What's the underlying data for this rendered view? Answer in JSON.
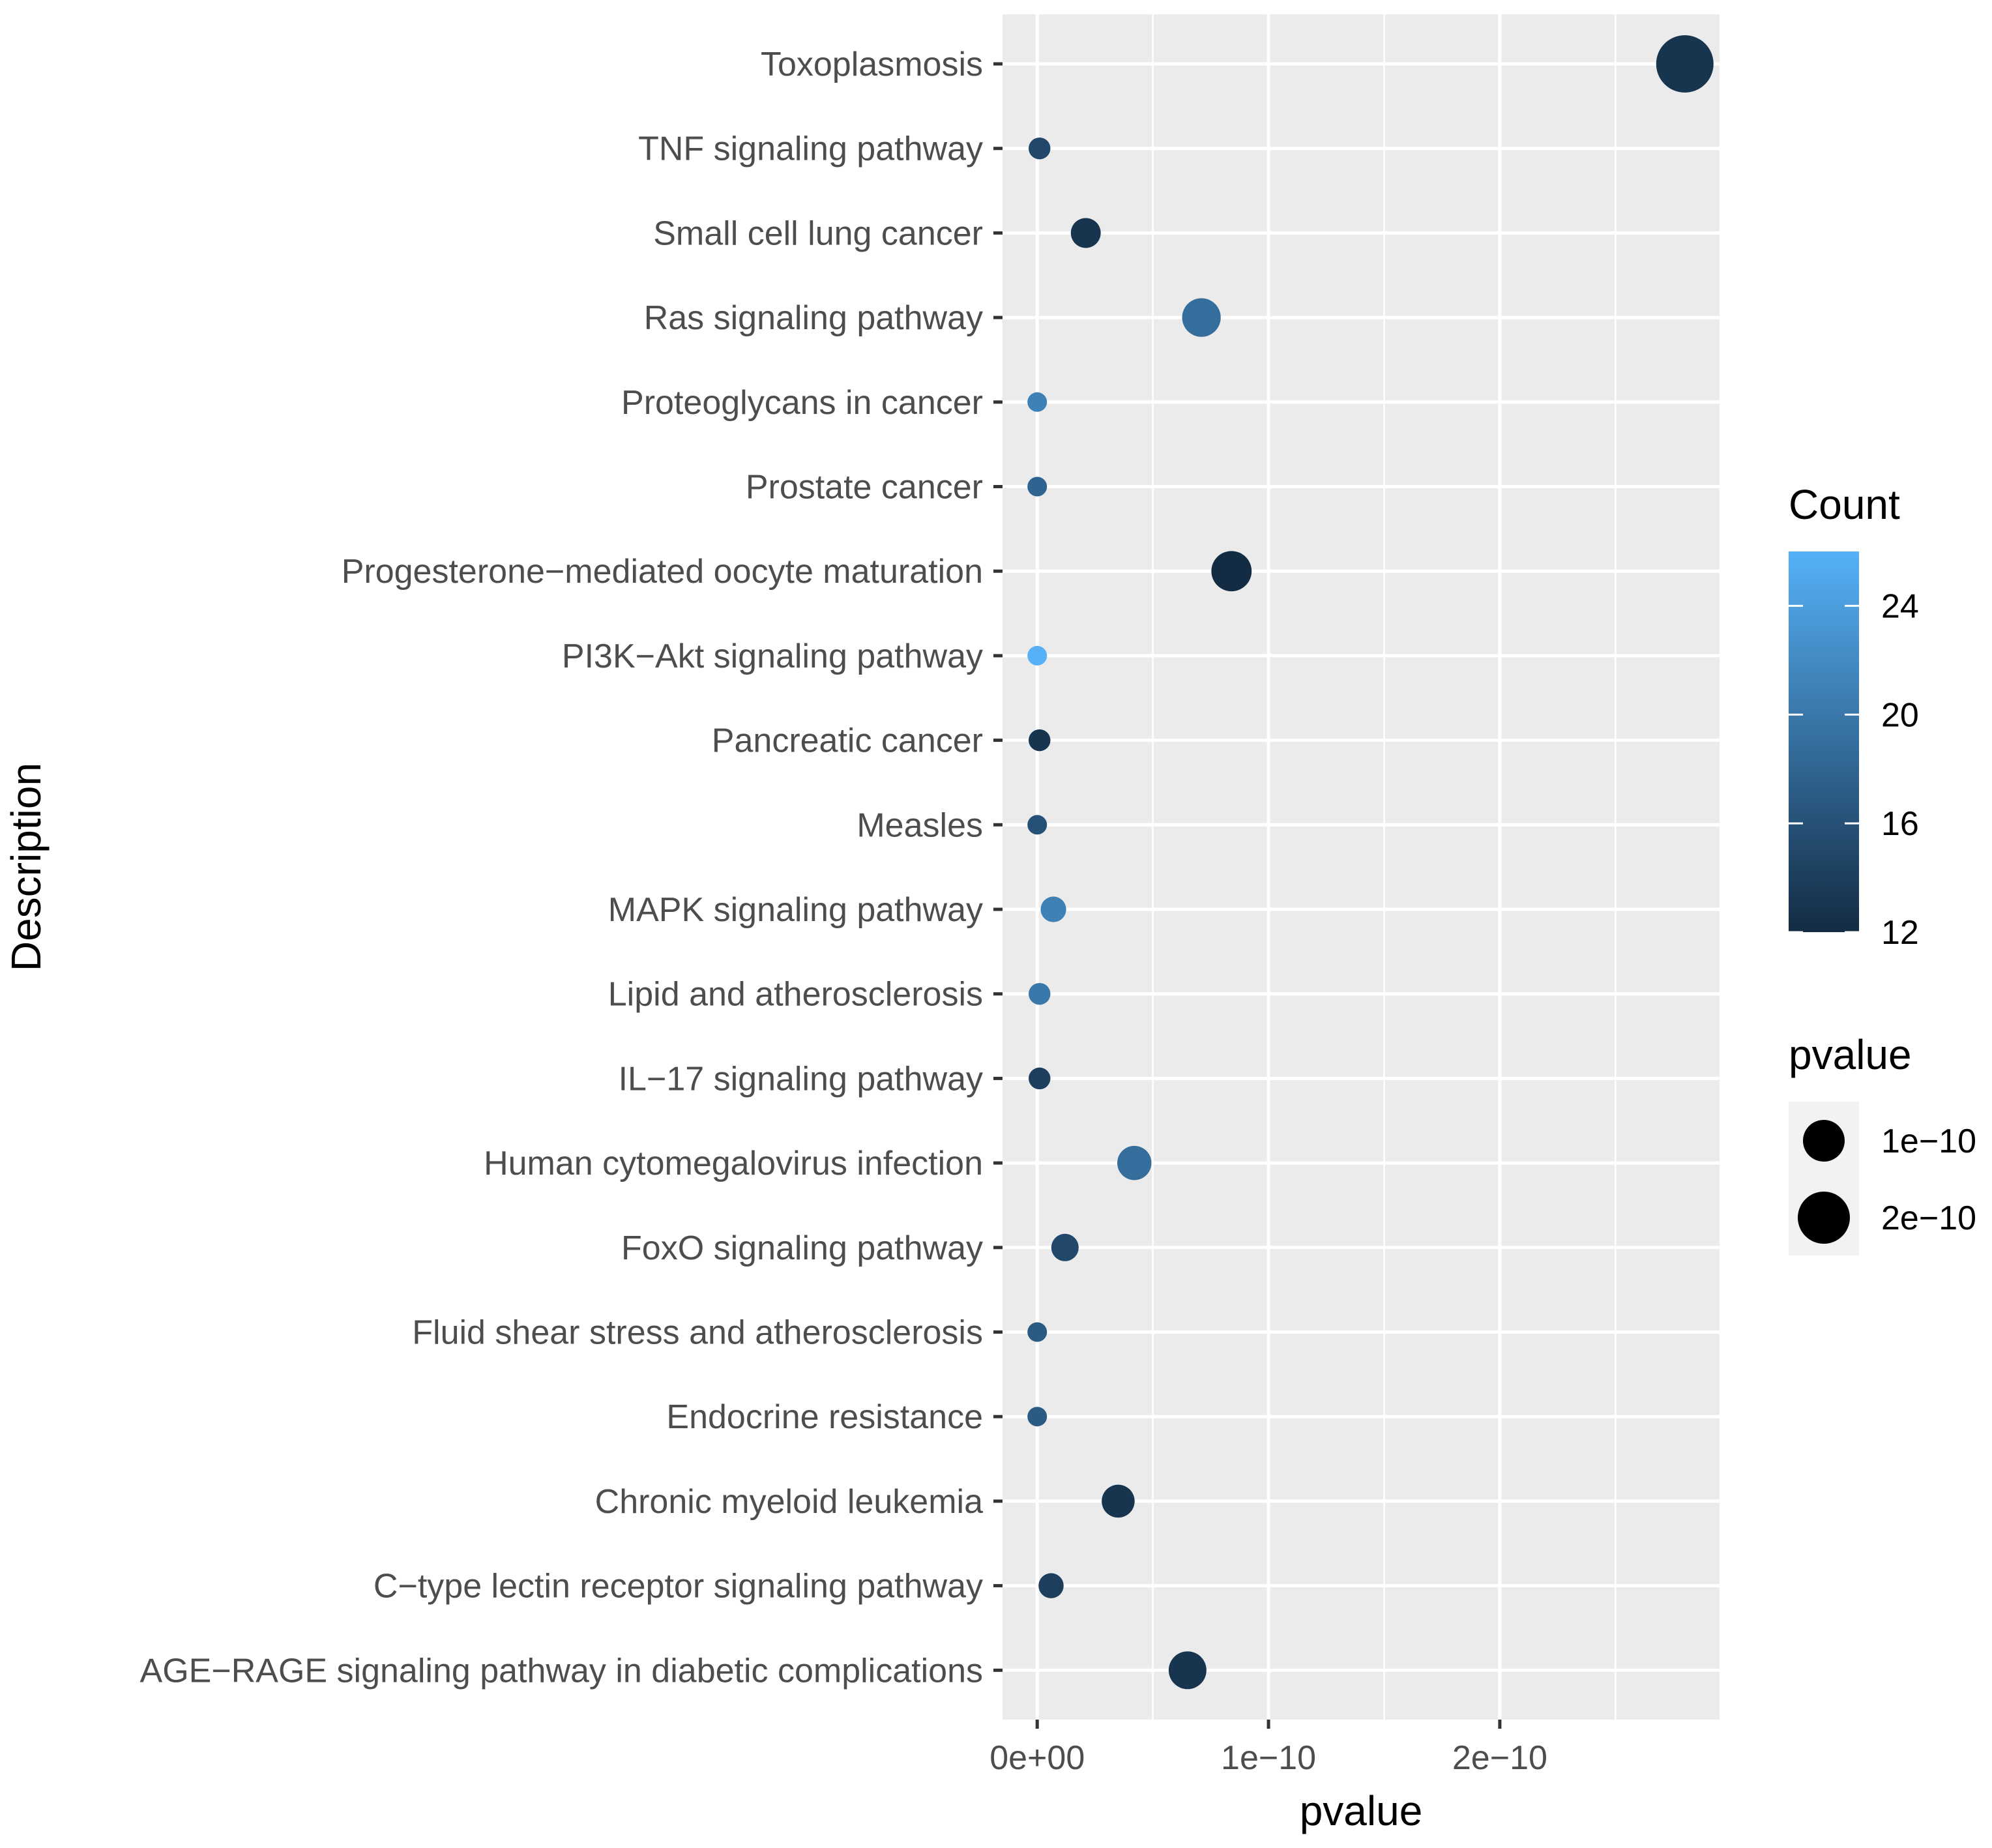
{
  "chart_data": {
    "type": "scatter",
    "title": "",
    "xlabel": "pvalue",
    "ylabel": "Description",
    "xlim": [
      -1.5e-11,
      2.95e-10
    ],
    "x_ticks": [
      0,
      1e-10,
      2e-10
    ],
    "x_tick_labels": [
      "0e+00",
      "1e−10",
      "2e−10"
    ],
    "grid": true,
    "categories": [
      "Toxoplasmosis",
      "TNF signaling pathway",
      "Small cell lung cancer",
      "Ras signaling pathway",
      "Proteoglycans in cancer",
      "Prostate cancer",
      "Progesterone−mediated oocyte maturation",
      "PI3K−Akt signaling pathway",
      "Pancreatic cancer",
      "Measles",
      "MAPK signaling pathway",
      "Lipid and atherosclerosis",
      "IL−17 signaling pathway",
      "Human cytomegalovirus infection",
      "FoxO signaling pathway",
      "Fluid shear stress and atherosclerosis",
      "Endocrine resistance",
      "Chronic myeloid leukemia",
      "C−type lectin receptor signaling pathway",
      "AGE−RAGE signaling pathway in diabetic complications"
    ],
    "x": [
      2.8e-10,
      1e-12,
      2.1e-11,
      7.1e-11,
      0.0,
      0.0,
      8.4e-11,
      0.0,
      1e-12,
      0.0,
      7e-12,
      1e-12,
      1e-12,
      4.2e-11,
      1.2e-11,
      0.0,
      0.0,
      3.5e-11,
      6e-12,
      6.5e-11
    ],
    "count": [
      13,
      15,
      13,
      19,
      21,
      18,
      12,
      26,
      13,
      16,
      21,
      20,
      14,
      19,
      15,
      17,
      17,
      13,
      14,
      13
    ],
    "size_by": "pvalue",
    "color_by": "Count",
    "color_low": "#132B43",
    "color_high": "#56B1F7",
    "legend": {
      "count_title": "Count",
      "count_ticks": [
        12,
        16,
        20,
        24
      ],
      "count_range": [
        12,
        26
      ],
      "pvalue_title": "pvalue",
      "pvalue_entries": [
        {
          "label": "1e−10",
          "value": 1e-10
        },
        {
          "label": "2e−10",
          "value": 2e-10
        }
      ]
    }
  }
}
